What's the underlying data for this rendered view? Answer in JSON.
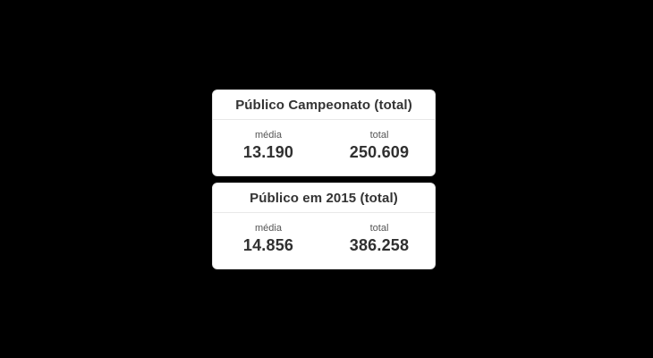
{
  "page": {
    "background_color": "#000000",
    "card_background_color": "#ffffff",
    "card_border_color": "#e2e2e2",
    "header_text_color": "#333333",
    "label_text_color": "#555555",
    "value_text_color": "#303030"
  },
  "panels": [
    {
      "title": "Público Campeonato (total)",
      "stats": [
        {
          "label": "média",
          "value": "13.190"
        },
        {
          "label": "total",
          "value": "250.609"
        }
      ]
    },
    {
      "title": "Público em 2015 (total)",
      "stats": [
        {
          "label": "média",
          "value": "14.856"
        },
        {
          "label": "total",
          "value": "386.258"
        }
      ]
    }
  ]
}
